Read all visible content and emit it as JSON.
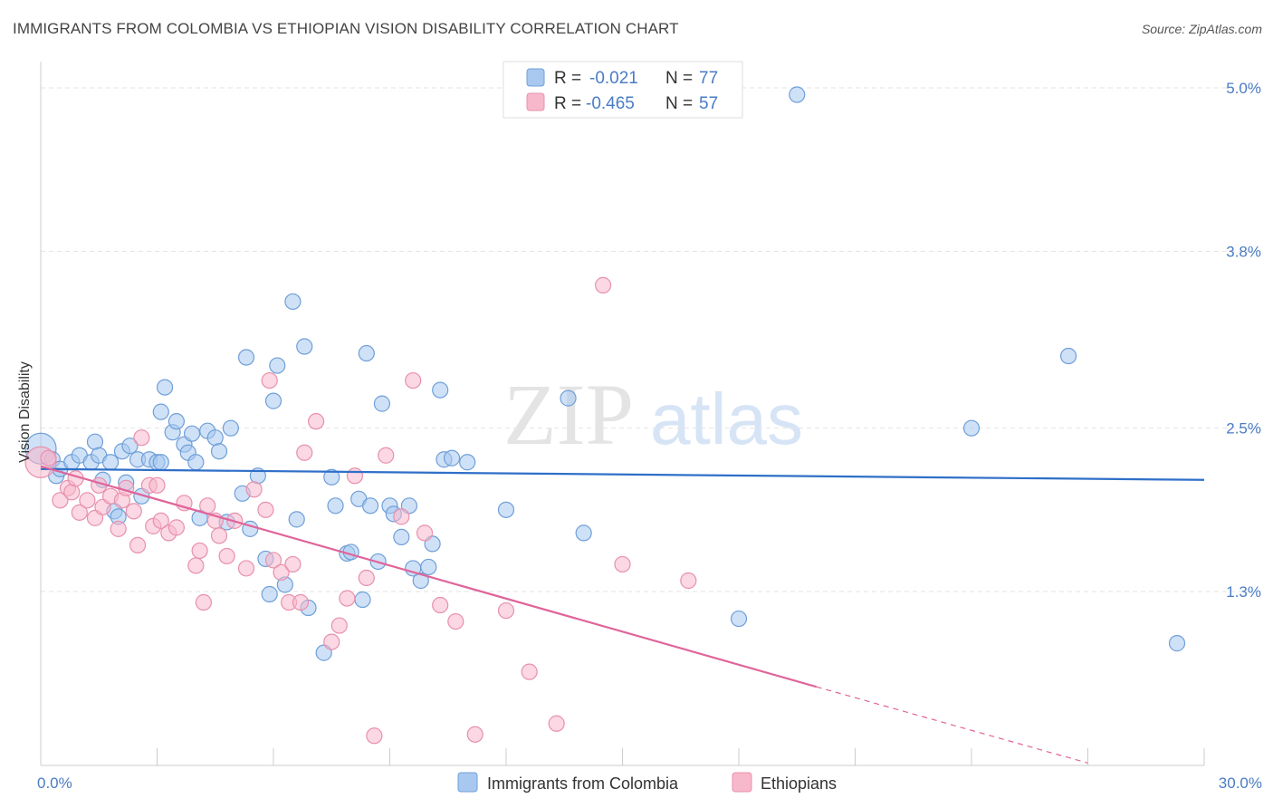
{
  "header": {
    "title": "IMMIGRANTS FROM COLOMBIA VS ETHIOPIAN VISION DISABILITY CORRELATION CHART",
    "source": "Source: ZipAtlas.com"
  },
  "watermark": {
    "zip": "ZIP",
    "atlas": "atlas"
  },
  "legend": {
    "r_label": "R =",
    "n_label": "N =",
    "rows": [
      {
        "r": "-0.021",
        "n": "77",
        "color": "#a8c8f0"
      },
      {
        "r": "-0.465",
        "n": "57",
        "color": "#f8b8cc"
      }
    ]
  },
  "bottom_legend": [
    {
      "label": "Immigrants from Colombia",
      "color": "#a8c8f0"
    },
    {
      "label": "Ethiopians",
      "color": "#f8b8cc"
    }
  ],
  "colors": {
    "blue_fill": "#a8c8f0",
    "blue_stroke": "#6f9fd8",
    "blue_line": "#2f6fc8",
    "pink_fill": "#f8b8cc",
    "pink_stroke": "#e890ad",
    "pink_line": "#e0649a",
    "accent_text": "#4a7cc4"
  },
  "chart_data": {
    "type": "scatter",
    "title": "IMMIGRANTS FROM COLOMBIA VS ETHIOPIAN VISION DISABILITY CORRELATION CHART",
    "xlabel": "",
    "ylabel": "Vision Disability",
    "xlim": [
      0,
      30
    ],
    "ylim": [
      0,
      5.2
    ],
    "x_tick_labels": [
      {
        "value": 0,
        "label": "0.0%"
      },
      {
        "value": 30,
        "label": "30.0%"
      }
    ],
    "y_tick_labels": [
      {
        "value": 1.3,
        "label": "1.3%"
      },
      {
        "value": 2.5,
        "label": "2.5%"
      },
      {
        "value": 3.8,
        "label": "3.8%"
      },
      {
        "value": 5.0,
        "label": "5.0%"
      }
    ],
    "grid": true,
    "legend_position": "top-center",
    "series": [
      {
        "name": "Immigrants from Colombia",
        "R": -0.021,
        "N": 77,
        "trend": {
          "x": [
            0,
            30
          ],
          "y": [
            2.2,
            2.12
          ]
        },
        "points": [
          {
            "x": 0.0,
            "y": 2.35,
            "big": true
          },
          {
            "x": 0.3,
            "y": 2.27
          },
          {
            "x": 0.4,
            "y": 2.15
          },
          {
            "x": 0.5,
            "y": 2.2
          },
          {
            "x": 0.8,
            "y": 2.25
          },
          {
            "x": 1.0,
            "y": 2.3
          },
          {
            "x": 1.3,
            "y": 2.25
          },
          {
            "x": 1.4,
            "y": 2.4
          },
          {
            "x": 1.5,
            "y": 2.3
          },
          {
            "x": 1.6,
            "y": 2.12
          },
          {
            "x": 1.8,
            "y": 2.25
          },
          {
            "x": 1.9,
            "y": 1.89
          },
          {
            "x": 2.0,
            "y": 1.85
          },
          {
            "x": 2.1,
            "y": 2.33
          },
          {
            "x": 2.2,
            "y": 2.1
          },
          {
            "x": 2.3,
            "y": 2.37
          },
          {
            "x": 2.5,
            "y": 2.27
          },
          {
            "x": 2.6,
            "y": 2.0
          },
          {
            "x": 2.8,
            "y": 2.27
          },
          {
            "x": 3.0,
            "y": 2.25
          },
          {
            "x": 3.1,
            "y": 2.25
          },
          {
            "x": 3.1,
            "y": 2.62
          },
          {
            "x": 3.2,
            "y": 2.8
          },
          {
            "x": 3.4,
            "y": 2.47
          },
          {
            "x": 3.5,
            "y": 2.55
          },
          {
            "x": 3.7,
            "y": 2.38
          },
          {
            "x": 3.8,
            "y": 2.32
          },
          {
            "x": 3.9,
            "y": 2.46
          },
          {
            "x": 4.0,
            "y": 2.25
          },
          {
            "x": 4.1,
            "y": 1.84
          },
          {
            "x": 4.3,
            "y": 2.48
          },
          {
            "x": 4.5,
            "y": 2.43
          },
          {
            "x": 4.6,
            "y": 2.33
          },
          {
            "x": 4.8,
            "y": 1.81
          },
          {
            "x": 4.9,
            "y": 2.5
          },
          {
            "x": 5.2,
            "y": 2.02
          },
          {
            "x": 5.3,
            "y": 3.02
          },
          {
            "x": 5.4,
            "y": 1.76
          },
          {
            "x": 5.6,
            "y": 2.15
          },
          {
            "x": 5.8,
            "y": 1.54
          },
          {
            "x": 5.9,
            "y": 1.28
          },
          {
            "x": 6.0,
            "y": 2.7
          },
          {
            "x": 6.1,
            "y": 2.96
          },
          {
            "x": 6.3,
            "y": 1.35
          },
          {
            "x": 6.5,
            "y": 3.43
          },
          {
            "x": 6.6,
            "y": 1.83
          },
          {
            "x": 6.8,
            "y": 3.1
          },
          {
            "x": 6.9,
            "y": 1.18
          },
          {
            "x": 7.3,
            "y": 0.85
          },
          {
            "x": 7.5,
            "y": 2.14
          },
          {
            "x": 7.6,
            "y": 1.93
          },
          {
            "x": 7.9,
            "y": 1.58
          },
          {
            "x": 8.0,
            "y": 1.59
          },
          {
            "x": 8.2,
            "y": 1.98
          },
          {
            "x": 8.3,
            "y": 1.24
          },
          {
            "x": 8.4,
            "y": 3.05
          },
          {
            "x": 8.5,
            "y": 1.93
          },
          {
            "x": 8.7,
            "y": 1.52
          },
          {
            "x": 8.8,
            "y": 2.68
          },
          {
            "x": 9.0,
            "y": 1.93
          },
          {
            "x": 9.1,
            "y": 1.87
          },
          {
            "x": 9.3,
            "y": 1.7
          },
          {
            "x": 9.5,
            "y": 1.93
          },
          {
            "x": 9.6,
            "y": 1.47
          },
          {
            "x": 9.8,
            "y": 1.38
          },
          {
            "x": 10.0,
            "y": 1.48
          },
          {
            "x": 10.1,
            "y": 1.65
          },
          {
            "x": 10.3,
            "y": 2.78
          },
          {
            "x": 10.4,
            "y": 2.27
          },
          {
            "x": 10.6,
            "y": 2.28
          },
          {
            "x": 11.0,
            "y": 2.25
          },
          {
            "x": 12.0,
            "y": 1.9
          },
          {
            "x": 13.6,
            "y": 2.72
          },
          {
            "x": 14.0,
            "y": 1.73
          },
          {
            "x": 18.0,
            "y": 1.1
          },
          {
            "x": 19.5,
            "y": 4.95
          },
          {
            "x": 24.0,
            "y": 2.5
          },
          {
            "x": 26.5,
            "y": 3.03
          },
          {
            "x": 29.3,
            "y": 0.92
          }
        ]
      },
      {
        "name": "Ethiopians",
        "R": -0.465,
        "N": 57,
        "trend": {
          "x": [
            0,
            20
          ],
          "y": [
            2.22,
            0.6
          ]
        },
        "trend_dashed_ext": {
          "x": [
            20,
            27
          ],
          "y": [
            0.6,
            0.04
          ]
        },
        "points": [
          {
            "x": 0.0,
            "y": 2.25,
            "big": true
          },
          {
            "x": 0.2,
            "y": 2.28
          },
          {
            "x": 0.5,
            "y": 1.97
          },
          {
            "x": 0.7,
            "y": 2.06
          },
          {
            "x": 0.8,
            "y": 2.03
          },
          {
            "x": 0.9,
            "y": 2.13
          },
          {
            "x": 1.0,
            "y": 1.88
          },
          {
            "x": 1.2,
            "y": 1.97
          },
          {
            "x": 1.4,
            "y": 1.84
          },
          {
            "x": 1.5,
            "y": 2.08
          },
          {
            "x": 1.6,
            "y": 1.92
          },
          {
            "x": 1.8,
            "y": 2.0
          },
          {
            "x": 2.0,
            "y": 1.76
          },
          {
            "x": 2.1,
            "y": 1.97
          },
          {
            "x": 2.2,
            "y": 2.06
          },
          {
            "x": 2.4,
            "y": 1.89
          },
          {
            "x": 2.5,
            "y": 1.64
          },
          {
            "x": 2.6,
            "y": 2.43
          },
          {
            "x": 2.8,
            "y": 2.08
          },
          {
            "x": 2.9,
            "y": 1.78
          },
          {
            "x": 3.0,
            "y": 2.08
          },
          {
            "x": 3.1,
            "y": 1.82
          },
          {
            "x": 3.3,
            "y": 1.73
          },
          {
            "x": 3.5,
            "y": 1.77
          },
          {
            "x": 3.7,
            "y": 1.95
          },
          {
            "x": 4.0,
            "y": 1.49
          },
          {
            "x": 4.1,
            "y": 1.6
          },
          {
            "x": 4.2,
            "y": 1.22
          },
          {
            "x": 4.3,
            "y": 1.93
          },
          {
            "x": 4.5,
            "y": 1.82
          },
          {
            "x": 4.6,
            "y": 1.71
          },
          {
            "x": 4.8,
            "y": 1.56
          },
          {
            "x": 5.0,
            "y": 1.82
          },
          {
            "x": 5.3,
            "y": 1.47
          },
          {
            "x": 5.5,
            "y": 2.05
          },
          {
            "x": 5.8,
            "y": 1.9
          },
          {
            "x": 5.9,
            "y": 2.85
          },
          {
            "x": 6.0,
            "y": 1.53
          },
          {
            "x": 6.2,
            "y": 1.44
          },
          {
            "x": 6.4,
            "y": 1.22
          },
          {
            "x": 6.5,
            "y": 1.5
          },
          {
            "x": 6.7,
            "y": 1.22
          },
          {
            "x": 6.8,
            "y": 2.32
          },
          {
            "x": 7.1,
            "y": 2.55
          },
          {
            "x": 7.5,
            "y": 0.93
          },
          {
            "x": 7.7,
            "y": 1.05
          },
          {
            "x": 7.9,
            "y": 1.25
          },
          {
            "x": 8.1,
            "y": 2.15
          },
          {
            "x": 8.4,
            "y": 1.4
          },
          {
            "x": 8.6,
            "y": 0.24
          },
          {
            "x": 8.9,
            "y": 2.3
          },
          {
            "x": 9.3,
            "y": 1.85
          },
          {
            "x": 9.6,
            "y": 2.85
          },
          {
            "x": 9.9,
            "y": 1.73
          },
          {
            "x": 10.3,
            "y": 1.2
          },
          {
            "x": 10.7,
            "y": 1.08
          },
          {
            "x": 11.2,
            "y": 0.25
          },
          {
            "x": 12.0,
            "y": 1.16
          },
          {
            "x": 12.6,
            "y": 0.71
          },
          {
            "x": 13.3,
            "y": 0.33
          },
          {
            "x": 14.5,
            "y": 3.55
          },
          {
            "x": 15.0,
            "y": 1.5
          },
          {
            "x": 16.7,
            "y": 1.38
          }
        ]
      }
    ]
  }
}
